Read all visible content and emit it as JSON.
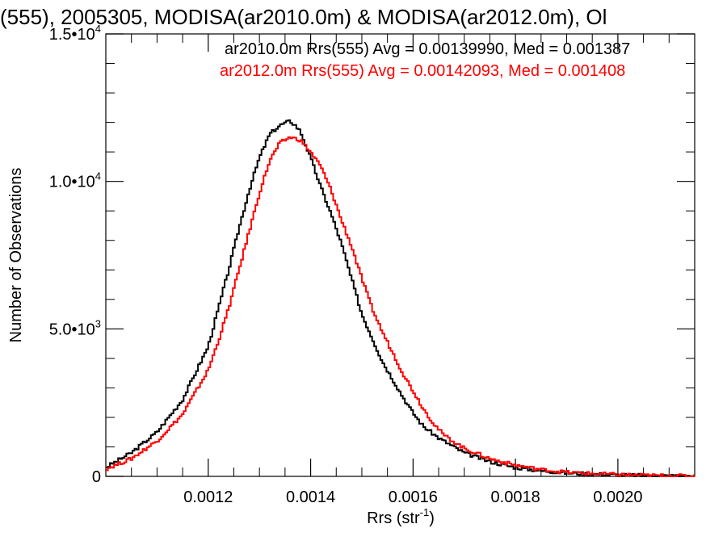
{
  "chart_data": {
    "type": "histogram",
    "title": "(555), 2005305, MODISA(ar2010.0m) & MODISA(ar2012.0m), Ol",
    "xlabel": "Rrs (str",
    "xlabel_sup": "-1",
    "xlabel_close": ")",
    "ylabel": "Number of Observations",
    "xlim": [
      0.001,
      0.00215
    ],
    "ylim": [
      0,
      15000
    ],
    "xticks": [
      {
        "value": 0.0012,
        "label": "0.0012"
      },
      {
        "value": 0.0014,
        "label": "0.0014"
      },
      {
        "value": 0.0016,
        "label": "0.0016"
      },
      {
        "value": 0.0018,
        "label": "0.0018"
      },
      {
        "value": 0.002,
        "label": "0.0020"
      }
    ],
    "yticks": [
      {
        "value": 0,
        "mant": "0",
        "exp": ""
      },
      {
        "value": 5000,
        "mant": "5.0•10",
        "exp": "3"
      },
      {
        "value": 10000,
        "mant": "1.0•10",
        "exp": "4"
      },
      {
        "value": 15000,
        "mant": "1.5•10",
        "exp": "4"
      }
    ],
    "legend": [
      {
        "text": "ar2010.0m Rrs(555) Avg = 0.00139990, Med = 0.001387",
        "color": "#000000"
      },
      {
        "text": "ar2012.0m Rrs(555) Avg = 0.00142093, Med = 0.001408",
        "color": "#ff0000"
      }
    ],
    "series": [
      {
        "color": "#000000",
        "x": [
          0.001,
          0.00105,
          0.0011,
          0.00115,
          0.0012,
          0.00122,
          0.00124,
          0.00126,
          0.00128,
          0.0013,
          0.00132,
          0.00134,
          0.00136,
          0.00137,
          0.00138,
          0.0014,
          0.00142,
          0.00144,
          0.00146,
          0.00148,
          0.0015,
          0.00152,
          0.00154,
          0.00156,
          0.00158,
          0.0016,
          0.00162,
          0.00165,
          0.0017,
          0.00175,
          0.0018,
          0.00185,
          0.0019,
          0.00195,
          0.002,
          0.00205,
          0.0021,
          0.00215
        ],
        "y": [
          300,
          800,
          1500,
          2600,
          4400,
          5700,
          7000,
          8400,
          9700,
          10800,
          11600,
          11900,
          12050,
          11900,
          11700,
          10800,
          9800,
          8900,
          7900,
          6700,
          5500,
          4700,
          3900,
          3300,
          2700,
          2150,
          1700,
          1300,
          800,
          500,
          300,
          190,
          120,
          80,
          50,
          30,
          20,
          10
        ]
      },
      {
        "color": "#ff0000",
        "x": [
          0.001,
          0.00105,
          0.0011,
          0.00115,
          0.0012,
          0.00122,
          0.00124,
          0.00126,
          0.00128,
          0.0013,
          0.00132,
          0.00134,
          0.00136,
          0.00138,
          0.0014,
          0.00142,
          0.00144,
          0.00146,
          0.00148,
          0.0015,
          0.00152,
          0.00154,
          0.00156,
          0.00158,
          0.0016,
          0.00162,
          0.00164,
          0.00166,
          0.0017,
          0.00175,
          0.0018,
          0.00185,
          0.0019,
          0.00195,
          0.002,
          0.00205,
          0.0021,
          0.00215
        ],
        "y": [
          250,
          600,
          1200,
          2100,
          3600,
          4600,
          5700,
          7000,
          8300,
          9600,
          10700,
          11300,
          11500,
          11400,
          11000,
          10500,
          9700,
          8700,
          7800,
          6700,
          5700,
          4900,
          4200,
          3500,
          2900,
          2300,
          1800,
          1400,
          950,
          600,
          380,
          230,
          140,
          90,
          60,
          35,
          20,
          10
        ]
      }
    ]
  }
}
